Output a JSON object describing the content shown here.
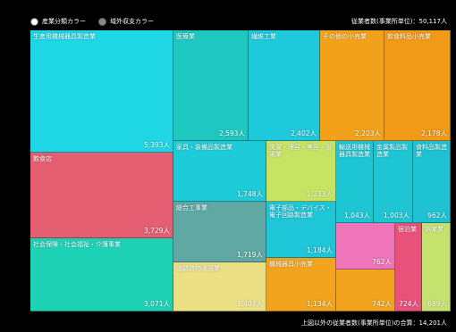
{
  "legend": {
    "industry_label": "産業分類カラー",
    "region_label": "域外収支カラー"
  },
  "total_label": "従業者数(事業所単位)：50,117人",
  "bottom_note": "上図以外の従業者数(事業所単位)の合算：14,201人",
  "chart_data": {
    "type": "treemap",
    "unit": "人",
    "items": [
      {
        "name": "生産用機械器具製造業",
        "value": 5393,
        "display": "5,393人",
        "color": "#1ed6e4"
      },
      {
        "name": "医療業",
        "value": 2593,
        "display": "2,593人",
        "color": "#1ec8c0"
      },
      {
        "name": "繊維工業",
        "value": 2402,
        "display": "2,402人",
        "color": "#1ec9dc"
      },
      {
        "name": "その他の小売業",
        "value": 2203,
        "display": "2,203人",
        "color": "#f2a21a"
      },
      {
        "name": "飲食料品小売業",
        "value": 2178,
        "display": "2,178人",
        "color": "#f09a18"
      },
      {
        "name": "飲食店",
        "value": 3729,
        "display": "3,729人",
        "color": "#e65e72"
      },
      {
        "name": "家具・装備品製造業",
        "value": 1748,
        "display": "1,748人",
        "color": "#1ecbd8"
      },
      {
        "name": "洗濯・理容・美容・浴場業",
        "value": 1233,
        "display": "1,233人",
        "color": "#c6e462"
      },
      {
        "name": "輸送用機械器具製造業",
        "value": 1043,
        "display": "1,043人",
        "color": "#1ec6d4"
      },
      {
        "name": "金属製品製造業",
        "value": 1003,
        "display": "1,003人",
        "color": "#1ec6d4"
      },
      {
        "name": "食料品製造業",
        "value": 962,
        "display": "962人",
        "color": "#1ec2d2"
      },
      {
        "name": "総合工事業",
        "value": 1719,
        "display": "1,719人",
        "color": "#5fa8a4"
      },
      {
        "name": "電子部品・デバイス・電子回路製造業",
        "value": 1184,
        "display": "1,184人",
        "color": "#1ec6d8"
      },
      {
        "name": "社会保険・社会福祉・介護事業",
        "value": 3071,
        "display": "3,071人",
        "color": "#1ed2b6"
      },
      {
        "name": "",
        "value": 762,
        "display": "762人",
        "color": "#f074b8"
      },
      {
        "name": "宿泊業",
        "value": 724,
        "display": "724人",
        "color": "#e8527a"
      },
      {
        "name": "娯楽業",
        "value": 689,
        "display": "689人",
        "color": "#c6e26e"
      },
      {
        "name": "道路貨物運送業",
        "value": 1404,
        "display": "1,404人",
        "color": "#ece084"
      },
      {
        "name": "機械器具小売業",
        "value": 1134,
        "display": "1,134人",
        "color": "#f2a41e"
      },
      {
        "name": "",
        "value": 742,
        "display": "742人",
        "color": "#f2a41e"
      }
    ]
  }
}
